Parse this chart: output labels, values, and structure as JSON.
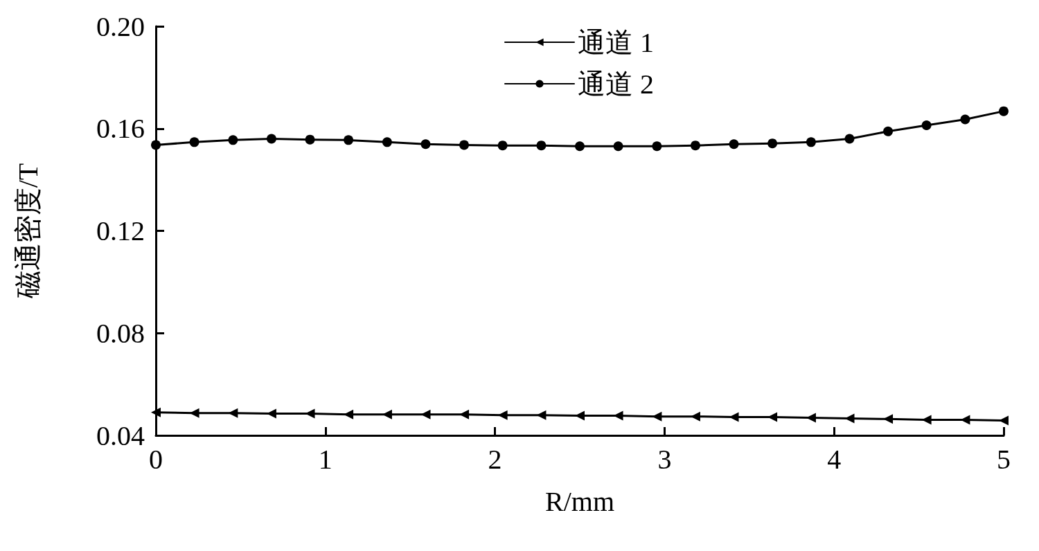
{
  "chart_data": {
    "type": "line",
    "xlabel": "R/mm",
    "ylabel": "磁通密度/T",
    "x": [
      0,
      0.227,
      0.455,
      0.682,
      0.909,
      1.136,
      1.364,
      1.591,
      1.818,
      2.045,
      2.273,
      2.5,
      2.727,
      2.955,
      3.182,
      3.409,
      3.636,
      3.864,
      4.091,
      4.318,
      4.545,
      4.773,
      5
    ],
    "series": [
      {
        "name": "通道 1",
        "color": "#000000",
        "marker": "triangle",
        "values": [
          0.049,
          0.0487,
          0.0487,
          0.0485,
          0.0485,
          0.0482,
          0.0482,
          0.0482,
          0.0482,
          0.0479,
          0.0479,
          0.0477,
          0.0477,
          0.0474,
          0.0474,
          0.0472,
          0.0472,
          0.0469,
          0.0466,
          0.0464,
          0.0461,
          0.0461,
          0.0458
        ]
      },
      {
        "name": "通道 2",
        "color": "#000000",
        "marker": "circle",
        "values": [
          0.1536,
          0.1547,
          0.1555,
          0.156,
          0.1557,
          0.1555,
          0.1547,
          0.1539,
          0.1536,
          0.1534,
          0.1534,
          0.1531,
          0.1531,
          0.1531,
          0.1534,
          0.1539,
          0.1542,
          0.1547,
          0.156,
          0.1589,
          0.1613,
          0.1636,
          0.1668
        ]
      }
    ],
    "xlim": [
      0,
      5
    ],
    "xticks": [
      0,
      1,
      2,
      3,
      4,
      5
    ],
    "ylim": [
      0.04,
      0.2
    ],
    "yticks": [
      {
        "value": 0.04,
        "label": "0.04"
      },
      {
        "value": 0.08,
        "label": "0.08"
      },
      {
        "value": 0.12,
        "label": "0.12"
      },
      {
        "value": 0.16,
        "label": "0.16"
      },
      {
        "value": 0.2,
        "label": "0.20"
      }
    ],
    "grid": false,
    "legend": "top",
    "line_style": "solid"
  }
}
